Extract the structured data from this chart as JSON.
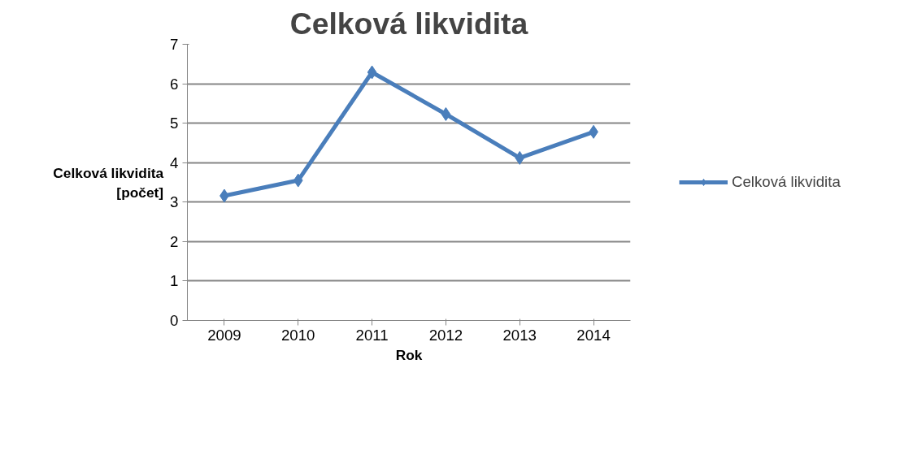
{
  "chart_data": {
    "type": "line",
    "title": "Celková likvidita",
    "xlabel": "Rok",
    "ylabel": "Celková likvidita\n[počet]",
    "categories": [
      "2009",
      "2010",
      "2011",
      "2012",
      "2013",
      "2014"
    ],
    "series": [
      {
        "name": "Celková likvidita",
        "color": "#4a7ebb",
        "values": [
          3.16,
          3.55,
          6.29,
          5.23,
          4.12,
          4.78
        ]
      }
    ],
    "ylim": [
      0,
      7
    ],
    "yticks": [
      0,
      1,
      2,
      3,
      4,
      5,
      6,
      7
    ],
    "grid": "y",
    "legend": "right",
    "marker": "diamond",
    "line_style": "solid"
  }
}
